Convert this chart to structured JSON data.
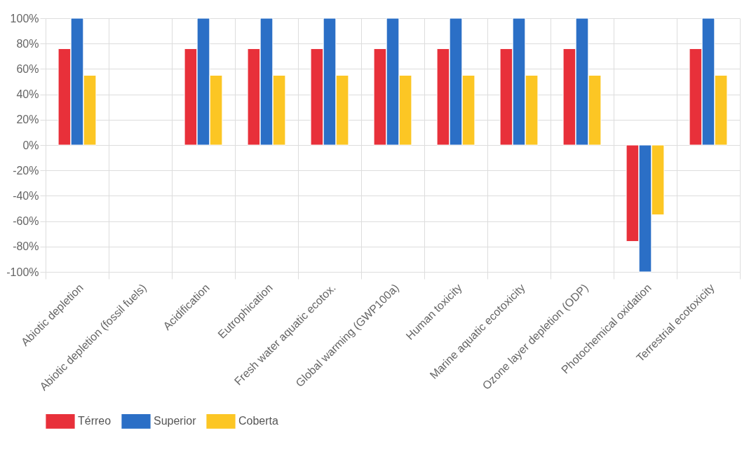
{
  "chart_data": {
    "type": "bar",
    "categories": [
      "Abiotic depletion",
      "Abiotic depletion (fossil fuels)",
      "Acidification",
      "Eutrophication",
      "Fresh water aquatic ecotox.",
      "Global warming (GWP100a)",
      "Human toxicity",
      "Marine aquatic ecotoxicity",
      "Ozone layer depletion (ODP)",
      "Photochemical oxidation",
      "Terrestrial ecotoxicity"
    ],
    "series": [
      {
        "name": "Térreo",
        "color": "#e8303a",
        "values": [
          76,
          null,
          76,
          76,
          76,
          76,
          76,
          76,
          76,
          -76,
          76
        ]
      },
      {
        "name": "Superior",
        "color": "#2b6fc6",
        "values": [
          100,
          null,
          100,
          100,
          100,
          100,
          100,
          100,
          100,
          -100,
          100
        ]
      },
      {
        "name": "Coberta",
        "color": "#fcc624",
        "values": [
          55,
          null,
          55,
          55,
          55,
          55,
          55,
          55,
          55,
          -55,
          55
        ]
      }
    ],
    "ylim": [
      -100,
      100
    ],
    "yticks": [
      {
        "value": -100,
        "label": "-100%"
      },
      {
        "value": -80,
        "label": "-80%"
      },
      {
        "value": -60,
        "label": "-60%"
      },
      {
        "value": -40,
        "label": "-40%"
      },
      {
        "value": -20,
        "label": "-20%"
      },
      {
        "value": 0,
        "label": "0%"
      },
      {
        "value": 20,
        "label": "20%"
      },
      {
        "value": 40,
        "label": "40%"
      },
      {
        "value": 60,
        "label": "60%"
      },
      {
        "value": 80,
        "label": "80%"
      },
      {
        "value": 100,
        "label": "100%"
      }
    ],
    "grid": true,
    "legend": "bottom"
  }
}
